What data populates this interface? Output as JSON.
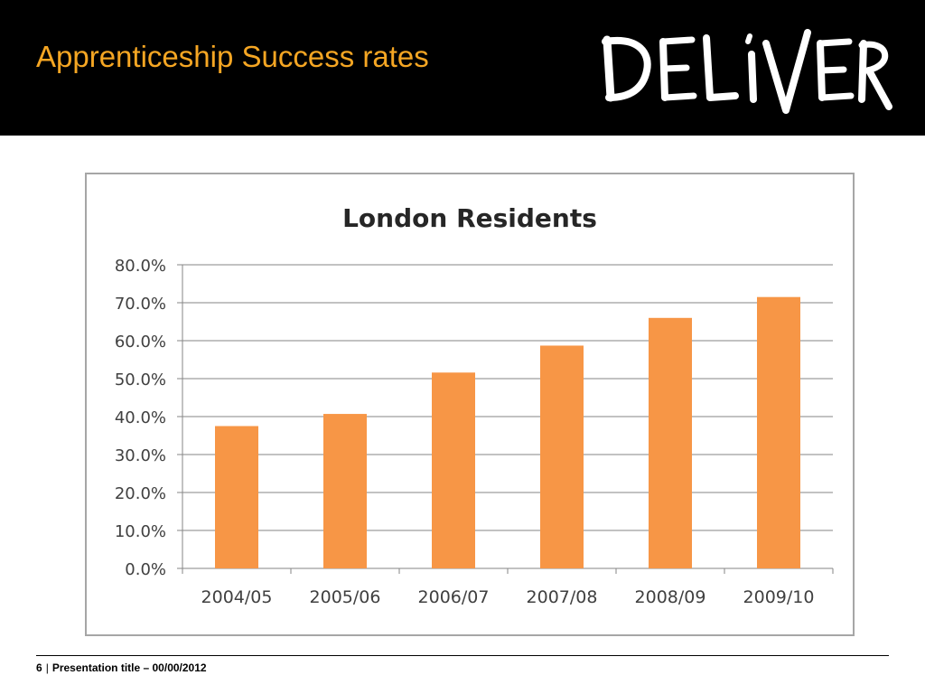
{
  "slide": {
    "title": "Apprenticeship Success rates",
    "logo_text": "DELIVER"
  },
  "footer": {
    "page_number": "6",
    "separator": "|",
    "text": "Presentation title – 00/00/2012"
  },
  "colors": {
    "header_bg": "#000000",
    "title": "#f5a623",
    "bar": "#f79646",
    "grid": "#868686"
  },
  "chart_data": {
    "type": "bar",
    "title": "London Residents",
    "xlabel": "",
    "ylabel": "",
    "categories": [
      "2004/05",
      "2005/06",
      "2006/07",
      "2007/08",
      "2008/09",
      "2009/10"
    ],
    "series": [
      {
        "values": [
          37.5,
          40.7,
          51.6,
          58.7,
          66.0,
          71.5
        ]
      }
    ],
    "ylim": [
      0,
      80
    ],
    "yticks": [
      "0.0%",
      "10.0%",
      "20.0%",
      "30.0%",
      "40.0%",
      "50.0%",
      "60.0%",
      "70.0%",
      "80.0%"
    ],
    "grid": true,
    "legend": "none"
  }
}
